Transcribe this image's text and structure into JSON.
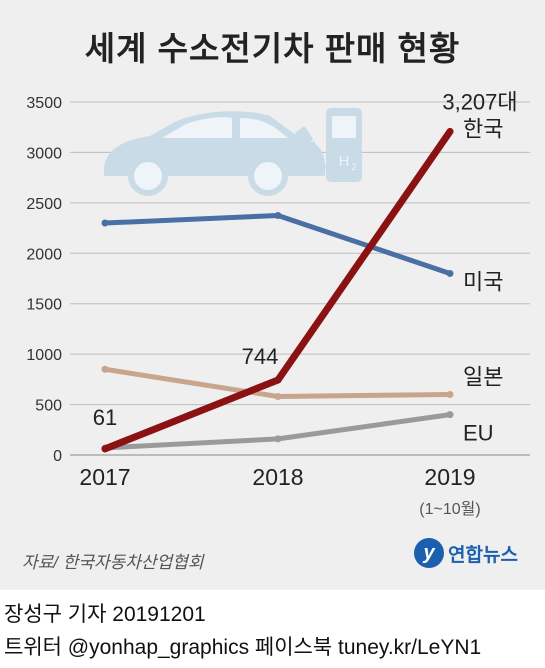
{
  "title": "세계 수소전기차 판매 현황",
  "chart_data": {
    "type": "line",
    "title": "세계 수소전기차 판매 현황",
    "categories": [
      "2017",
      "2018",
      "2019"
    ],
    "category_note": "(1~10월)",
    "ylim": [
      0,
      3500
    ],
    "yticks": [
      0,
      500,
      1000,
      1500,
      2000,
      2500,
      3000,
      3500
    ],
    "grid": true,
    "series": [
      {
        "name": "한국",
        "values": [
          61,
          744,
          3207
        ],
        "color": "#8b1212"
      },
      {
        "name": "미국",
        "values": [
          2300,
          2375,
          1800
        ],
        "color": "#4a6fa5"
      },
      {
        "name": "일본",
        "values": [
          850,
          580,
          600
        ],
        "color": "#c9a58d"
      },
      {
        "name": "EU",
        "values": [
          70,
          160,
          400
        ],
        "color": "#9a9a9a"
      }
    ],
    "annotations": [
      {
        "text": "61",
        "series": "한국",
        "index": 0
      },
      {
        "text": "744",
        "series": "한국",
        "index": 1
      },
      {
        "text": "3,207대",
        "series": "한국",
        "index": 2
      }
    ]
  },
  "source": "자료/ 한국자동차산업협회",
  "logo": {
    "mark": "y",
    "text": "연합뉴스"
  },
  "credit": {
    "line1": "장성구 기자  20191201",
    "line2": "트위터 @yonhap_graphics  페이스북 tuney.kr/LeYN1"
  }
}
